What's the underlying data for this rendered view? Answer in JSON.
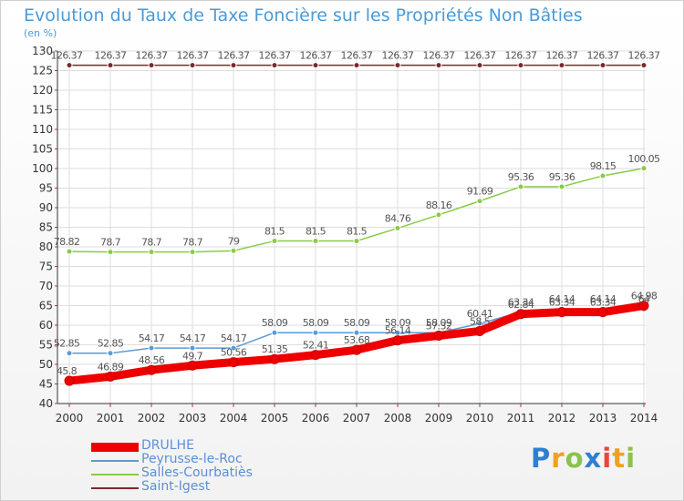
{
  "chart_data": {
    "type": "line",
    "title": "Evolution du Taux de Taxe Foncière sur les Propriétés Non Bâties",
    "ylabel": "(en %)",
    "xlabel": "",
    "ylim": [
      40,
      130
    ],
    "yticks": [
      "40",
      "45",
      "50",
      "55",
      "60",
      "65",
      "70",
      "75",
      "80",
      "85",
      "90",
      "95",
      "100",
      "105",
      "110",
      "115",
      "120",
      "125",
      "130"
    ],
    "categories": [
      "2000",
      "2001",
      "2002",
      "2003",
      "2004",
      "2005",
      "2006",
      "2007",
      "2008",
      "2009",
      "2010",
      "2011",
      "2012",
      "2013",
      "2014"
    ],
    "series": [
      {
        "name": "DRULHE",
        "color": "#ee0000",
        "values": [
          45.8,
          46.89,
          48.56,
          49.7,
          50.56,
          51.35,
          52.41,
          53.68,
          56.14,
          57.32,
          58.5,
          62.84,
          63.34,
          63.34,
          64.98
        ],
        "labels": [
          "45.8",
          "46.89",
          "48.56",
          "49.7",
          "50.56",
          "51.35",
          "52.41",
          "53.68",
          "56.14",
          "57.32",
          "58.5",
          "62.84",
          "63.34",
          "63.34",
          "64.98"
        ]
      },
      {
        "name": "Peyrusse-le-Roc",
        "color": "#5b9bd5",
        "values": [
          52.85,
          52.85,
          54.17,
          54.17,
          54.17,
          58.09,
          58.09,
          58.09,
          58.09,
          58.09,
          60.41,
          63.34,
          64.14,
          64.14,
          64.14
        ],
        "labels": [
          "52.85",
          "52.85",
          "54.17",
          "54.17",
          "54.17",
          "58.09",
          "58.09",
          "58.09",
          "58.09",
          "58.09",
          "60.41",
          "63.34",
          "64.14",
          "64.14",
          "64"
        ]
      },
      {
        "name": "Salles-Courbatiès",
        "color": "#88cc44",
        "values": [
          78.82,
          78.7,
          78.7,
          78.7,
          79,
          81.5,
          81.5,
          81.5,
          84.76,
          88.16,
          91.69,
          95.36,
          95.36,
          98.15,
          100.05
        ],
        "labels": [
          "78.82",
          "78.7",
          "78.7",
          "78.7",
          "79",
          "81.5",
          "81.5",
          "81.5",
          "84.76",
          "88.16",
          "91.69",
          "95.36",
          "95.36",
          "98.15",
          "100.05"
        ]
      },
      {
        "name": "Saint-Igest",
        "color": "#7a2a2a",
        "values": [
          126.37,
          126.37,
          126.37,
          126.37,
          126.37,
          126.37,
          126.37,
          126.37,
          126.37,
          126.37,
          126.37,
          126.37,
          126.37,
          126.37,
          126.37
        ],
        "labels": [
          "126.37",
          "126.37",
          "126.37",
          "126.37",
          "126.37",
          "126.37",
          "126.37",
          "126.37",
          "126.37",
          "126.37",
          "126.37",
          "126.37",
          "126.37",
          "126.37",
          "126.37"
        ]
      }
    ],
    "legend_position": "bottom-left"
  },
  "logo": {
    "letters": [
      "P",
      "r",
      "o",
      "x",
      "i",
      "t",
      "i"
    ],
    "colors": [
      "#2e7fd0",
      "#f0a020",
      "#8bc34a",
      "#2e7fd0",
      "#e8453c",
      "#f0a020",
      "#8bc34a"
    ]
  },
  "colors": {
    "title": "#4a9ad8",
    "grid": "#dddddd",
    "axis": "#333333",
    "tick_text": "#333333",
    "value_text": "#555555"
  }
}
